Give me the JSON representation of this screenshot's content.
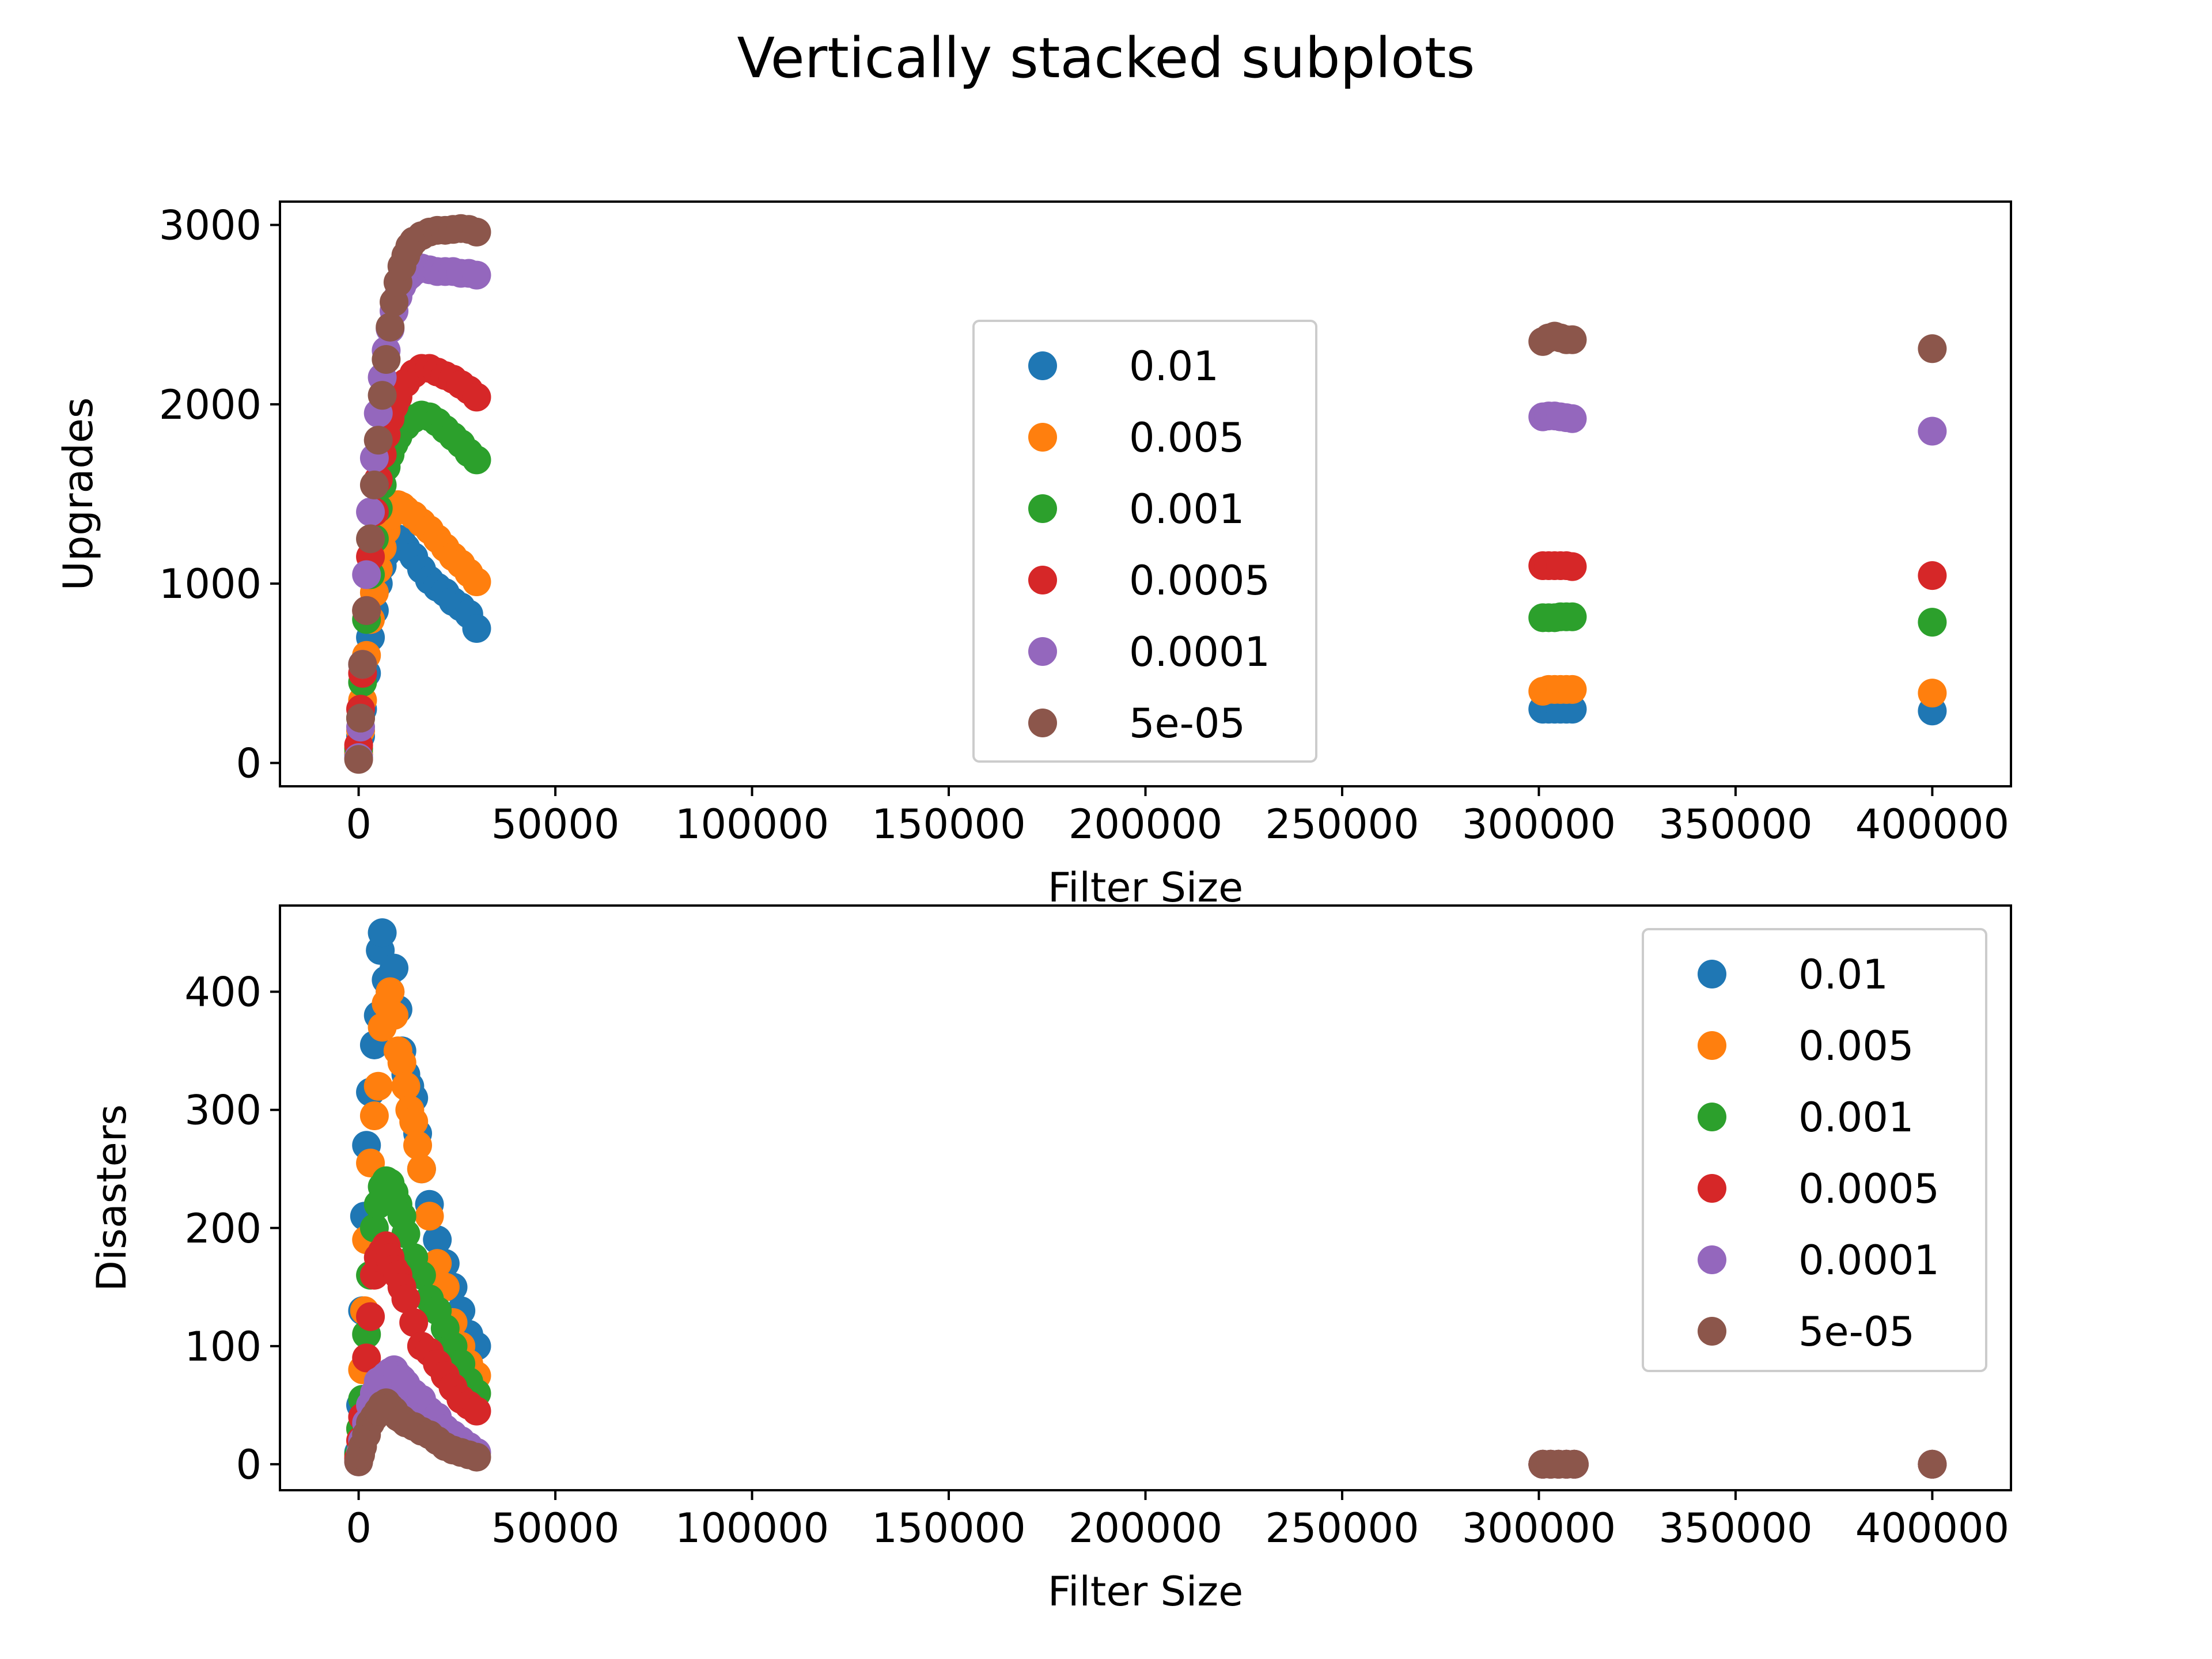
{
  "figure": {
    "title": "Vertically stacked subplots"
  },
  "chart_data": [
    {
      "type": "scatter",
      "title": "",
      "xlabel": "Filter Size",
      "ylabel": "Upgrades",
      "xlim": [
        -20000,
        420000
      ],
      "ylim": [
        -130,
        3130
      ],
      "xticks": [
        0,
        50000,
        100000,
        150000,
        200000,
        250000,
        300000,
        350000,
        400000
      ],
      "yticks": [
        0,
        1000,
        2000,
        3000
      ],
      "grid": false,
      "legend": {
        "position": "center",
        "title": ""
      },
      "series": [
        {
          "name": "0.01",
          "color": "#1f77b4",
          "x": [
            0,
            500,
            1000,
            2000,
            3000,
            4000,
            5000,
            6000,
            7000,
            8000,
            9000,
            10000,
            11000,
            12000,
            14000,
            16000,
            18000,
            20000,
            22000,
            24000,
            26000,
            28000,
            30000,
            301000,
            302500,
            304000,
            305500,
            307000,
            308500,
            400000
          ],
          "y": [
            50,
            150,
            300,
            500,
            700,
            850,
            1000,
            1100,
            1170,
            1220,
            1240,
            1250,
            1230,
            1200,
            1150,
            1080,
            1020,
            980,
            950,
            900,
            870,
            830,
            750,
            300,
            300,
            300,
            300,
            300,
            300,
            290
          ]
        },
        {
          "name": "0.005",
          "color": "#ff7f0e",
          "x": [
            0,
            500,
            1000,
            2000,
            3000,
            4000,
            5000,
            6000,
            7000,
            8000,
            9000,
            10000,
            11000,
            12000,
            14000,
            16000,
            18000,
            20000,
            22000,
            24000,
            26000,
            28000,
            30000,
            301000,
            302500,
            304000,
            305500,
            307000,
            308500,
            400000
          ],
          "y": [
            60,
            180,
            350,
            600,
            800,
            950,
            1080,
            1200,
            1300,
            1380,
            1420,
            1440,
            1430,
            1410,
            1380,
            1340,
            1300,
            1250,
            1200,
            1150,
            1110,
            1060,
            1010,
            400,
            410,
            410,
            410,
            410,
            410,
            390
          ]
        },
        {
          "name": "0.001",
          "color": "#2ca02c",
          "x": [
            0,
            500,
            1000,
            2000,
            3000,
            4000,
            5000,
            6000,
            7000,
            8000,
            9000,
            10000,
            12000,
            14000,
            16000,
            18000,
            20000,
            22000,
            24000,
            26000,
            28000,
            30000,
            301000,
            302500,
            304000,
            305500,
            307000,
            308500,
            400000
          ],
          "y": [
            80,
            250,
            450,
            800,
            1050,
            1250,
            1420,
            1550,
            1650,
            1720,
            1780,
            1820,
            1880,
            1920,
            1940,
            1930,
            1900,
            1860,
            1820,
            1780,
            1730,
            1690,
            810,
            810,
            810,
            815,
            815,
            815,
            785
          ]
        },
        {
          "name": "0.0005",
          "color": "#d62728",
          "x": [
            0,
            500,
            1000,
            2000,
            3000,
            4000,
            5000,
            6000,
            7000,
            8000,
            9000,
            10000,
            12000,
            14000,
            16000,
            18000,
            20000,
            22000,
            24000,
            26000,
            28000,
            30000,
            301000,
            302500,
            304000,
            305500,
            307000,
            308500,
            400000
          ],
          "y": [
            100,
            300,
            500,
            850,
            1150,
            1400,
            1580,
            1720,
            1830,
            1920,
            1990,
            2040,
            2120,
            2170,
            2200,
            2200,
            2180,
            2160,
            2140,
            2110,
            2080,
            2040,
            1100,
            1100,
            1100,
            1100,
            1100,
            1095,
            1045
          ]
        },
        {
          "name": "0.0001",
          "color": "#9467bd",
          "x": [
            0,
            500,
            1000,
            2000,
            3000,
            4000,
            5000,
            6000,
            7000,
            8000,
            9000,
            10000,
            11000,
            12000,
            13000,
            14000,
            16000,
            18000,
            20000,
            22000,
            24000,
            26000,
            28000,
            30000,
            301000,
            302500,
            304000,
            305500,
            307000,
            308500,
            400000
          ],
          "y": [
            30,
            200,
            550,
            1050,
            1400,
            1700,
            1950,
            2150,
            2300,
            2420,
            2520,
            2600,
            2660,
            2700,
            2720,
            2740,
            2760,
            2750,
            2740,
            2740,
            2740,
            2730,
            2730,
            2720,
            1930,
            1935,
            1935,
            1930,
            1925,
            1920,
            1850
          ]
        },
        {
          "name": "5e-05",
          "color": "#8c564b",
          "x": [
            0,
            500,
            1000,
            2000,
            3000,
            4000,
            5000,
            6000,
            7000,
            8000,
            9000,
            10000,
            11000,
            12000,
            13000,
            14000,
            16000,
            18000,
            20000,
            22000,
            24000,
            26000,
            28000,
            30000,
            301000,
            302500,
            304000,
            305500,
            307000,
            308500,
            400000
          ],
          "y": [
            20,
            250,
            550,
            850,
            1250,
            1550,
            1800,
            2050,
            2250,
            2430,
            2570,
            2680,
            2770,
            2830,
            2880,
            2910,
            2940,
            2960,
            2970,
            2970,
            2975,
            2980,
            2975,
            2960,
            2350,
            2370,
            2380,
            2370,
            2360,
            2360,
            2310
          ]
        }
      ]
    },
    {
      "type": "scatter",
      "title": "",
      "xlabel": "Filter Size",
      "ylabel": "Disasters",
      "xlim": [
        -20000,
        420000
      ],
      "ylim": [
        -22,
        473
      ],
      "xticks": [
        0,
        50000,
        100000,
        150000,
        200000,
        250000,
        300000,
        350000,
        400000
      ],
      "yticks": [
        0,
        100,
        200,
        300,
        400
      ],
      "grid": false,
      "legend": {
        "position": "upper right",
        "title": ""
      },
      "series": [
        {
          "name": "0.01",
          "color": "#1f77b4",
          "x": [
            0,
            500,
            1000,
            1500,
            2000,
            3000,
            4000,
            5000,
            5500,
            6000,
            7000,
            8000,
            9000,
            10000,
            11000,
            12000,
            13000,
            14000,
            15000,
            16000,
            18000,
            20000,
            22000,
            24000,
            26000,
            28000,
            30000,
            301000,
            303000,
            305000,
            307000,
            309000,
            400000
          ],
          "y": [
            10,
            50,
            130,
            210,
            270,
            315,
            355,
            380,
            435,
            450,
            410,
            400,
            420,
            385,
            350,
            330,
            320,
            310,
            280,
            250,
            220,
            190,
            170,
            150,
            130,
            110,
            100,
            0,
            0,
            0,
            0,
            0,
            0
          ]
        },
        {
          "name": "0.005",
          "color": "#ff7f0e",
          "x": [
            0,
            500,
            1000,
            1500,
            2000,
            3000,
            4000,
            5000,
            6000,
            7000,
            8000,
            9000,
            10000,
            11000,
            12000,
            13000,
            14000,
            15000,
            16000,
            18000,
            20000,
            22000,
            24000,
            26000,
            28000,
            30000,
            301000,
            303000,
            305000,
            307000,
            309000,
            400000
          ],
          "y": [
            5,
            30,
            80,
            130,
            190,
            255,
            295,
            320,
            370,
            390,
            400,
            380,
            350,
            340,
            320,
            300,
            290,
            270,
            250,
            210,
            170,
            150,
            120,
            100,
            85,
            75,
            0,
            0,
            0,
            0,
            0,
            0
          ]
        },
        {
          "name": "0.001",
          "color": "#2ca02c",
          "x": [
            0,
            500,
            1000,
            2000,
            3000,
            4000,
            5000,
            6000,
            7000,
            8000,
            9000,
            10000,
            11000,
            12000,
            14000,
            16000,
            18000,
            20000,
            22000,
            24000,
            26000,
            28000,
            30000,
            301000,
            303000,
            305000,
            307000,
            309000,
            400000
          ],
          "y": [
            8,
            30,
            55,
            110,
            160,
            200,
            220,
            235,
            240,
            238,
            230,
            220,
            210,
            195,
            175,
            160,
            140,
            130,
            115,
            100,
            85,
            70,
            60,
            0,
            0,
            0,
            0,
            0,
            0
          ]
        },
        {
          "name": "0.0005",
          "color": "#d62728",
          "x": [
            0,
            500,
            1000,
            2000,
            3000,
            4000,
            5000,
            6000,
            7000,
            8000,
            9000,
            10000,
            11000,
            12000,
            14000,
            16000,
            18000,
            20000,
            22000,
            24000,
            26000,
            28000,
            30000,
            301000,
            303000,
            305000,
            307000,
            309000,
            400000
          ],
          "y": [
            5,
            20,
            40,
            90,
            125,
            160,
            175,
            180,
            185,
            175,
            165,
            160,
            150,
            140,
            120,
            100,
            95,
            85,
            75,
            65,
            55,
            50,
            45,
            0,
            0,
            0,
            0,
            0,
            0
          ]
        },
        {
          "name": "0.0001",
          "color": "#9467bd",
          "x": [
            0,
            500,
            1000,
            2000,
            3000,
            4000,
            5000,
            6000,
            7000,
            8000,
            9000,
            10000,
            11000,
            12000,
            14000,
            16000,
            18000,
            20000,
            22000,
            24000,
            26000,
            28000,
            30000,
            301000,
            303000,
            305000,
            307000,
            309000,
            400000
          ],
          "y": [
            2,
            10,
            20,
            35,
            50,
            60,
            70,
            72,
            75,
            78,
            80,
            75,
            72,
            68,
            60,
            55,
            45,
            40,
            30,
            25,
            20,
            15,
            10,
            0,
            0,
            0,
            0,
            0,
            0
          ]
        },
        {
          "name": "5e-05",
          "color": "#8c564b",
          "x": [
            0,
            500,
            1000,
            2000,
            3000,
            4000,
            5000,
            6000,
            7000,
            8000,
            9000,
            10000,
            11000,
            12000,
            14000,
            16000,
            18000,
            20000,
            22000,
            24000,
            26000,
            28000,
            30000,
            301000,
            303000,
            305000,
            307000,
            309000,
            400000
          ],
          "y": [
            2,
            8,
            15,
            25,
            35,
            40,
            45,
            50,
            52,
            48,
            45,
            40,
            38,
            35,
            32,
            28,
            25,
            20,
            15,
            12,
            10,
            8,
            6,
            0,
            0,
            0,
            0,
            0,
            0
          ]
        }
      ]
    }
  ]
}
